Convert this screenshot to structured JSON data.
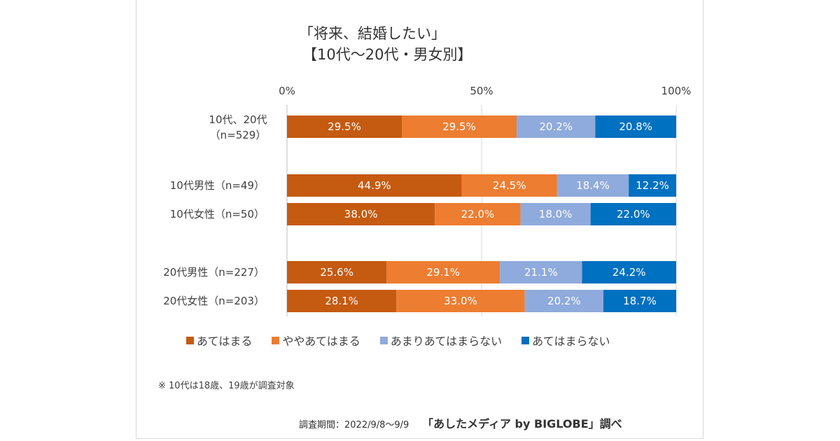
{
  "chart_data": {
    "type": "bar",
    "orientation": "horizontal",
    "stacked": "percent",
    "title": "「将来、結婚したい」",
    "subtitle": "【10代～20代・男女別】",
    "xlabel": "",
    "ylabel": "",
    "xlim": [
      0,
      100
    ],
    "x_ticks": [
      "0%",
      "50%",
      "100%"
    ],
    "x_tick_values": [
      0,
      50,
      100
    ],
    "grid": true,
    "legend_position": "bottom",
    "categories": [
      {
        "label_lines": [
          "10代、20代",
          "（n=529）"
        ],
        "group": 0
      },
      {
        "label_lines": [
          "10代男性（n=49）"
        ],
        "group": 1
      },
      {
        "label_lines": [
          "10代女性（n=50）"
        ],
        "group": 1
      },
      {
        "label_lines": [
          "20代男性（n=227）"
        ],
        "group": 2
      },
      {
        "label_lines": [
          "20代女性（n=203）"
        ],
        "group": 2
      }
    ],
    "series": [
      {
        "name": "あてはまる",
        "color": "#C55A11",
        "values": [
          29.5,
          44.9,
          38.0,
          25.6,
          28.1
        ]
      },
      {
        "name": "ややあてはまる",
        "color": "#ED7D31",
        "values": [
          29.5,
          24.5,
          22.0,
          29.1,
          33.0
        ]
      },
      {
        "name": "あまりあてはまらない",
        "color": "#8FAADC",
        "values": [
          20.2,
          18.4,
          18.0,
          21.1,
          20.2
        ]
      },
      {
        "name": "あてはまらない",
        "color": "#0070C0",
        "values": [
          20.8,
          12.2,
          22.0,
          24.2,
          18.7
        ]
      }
    ],
    "data_label_suffix": "%"
  },
  "note": "※ 10代は18歳、19歳が調査対象",
  "source": {
    "period": "調査期間：2022/9/8～9/9",
    "brand": "「あしたメディア by BIGLOBE」調べ"
  }
}
